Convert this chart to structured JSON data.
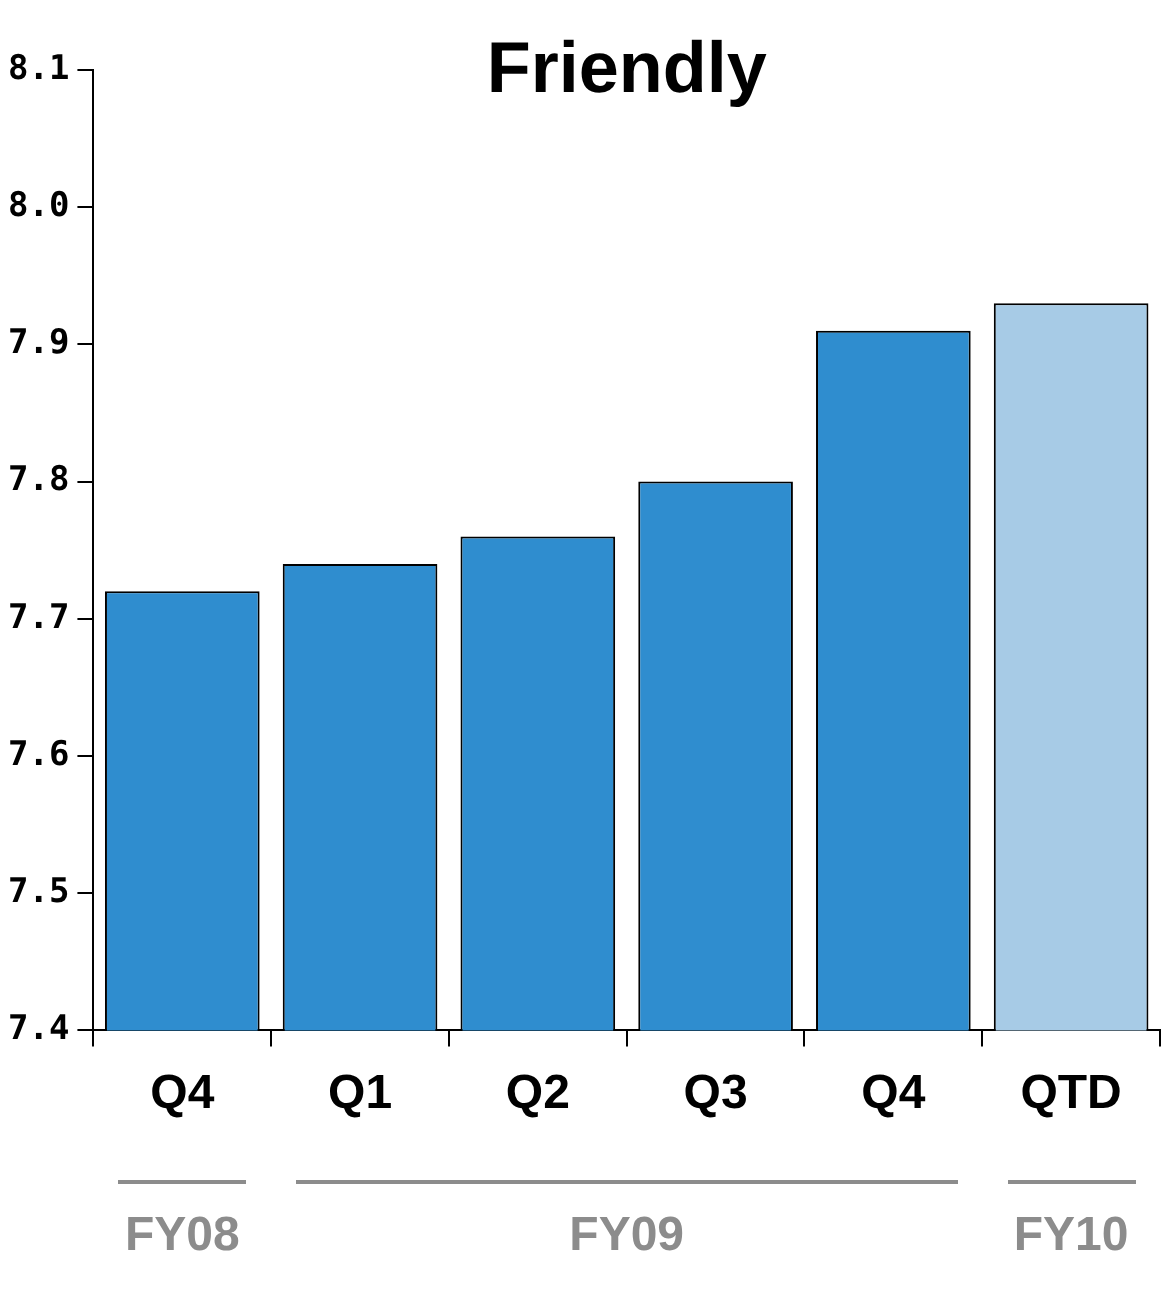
{
  "chart_data": {
    "type": "bar",
    "title": "Friendly",
    "categories": [
      "Q4",
      "Q1",
      "Q2",
      "Q3",
      "Q4",
      "QTD"
    ],
    "values": [
      7.72,
      7.74,
      7.76,
      7.8,
      7.91,
      7.93
    ],
    "colors": [
      "#2f8dcf",
      "#2f8dcf",
      "#2f8dcf",
      "#2f8dcf",
      "#2f8dcf",
      "#a7cbe6"
    ],
    "ylim": [
      7.4,
      8.1
    ],
    "yticks": [
      7.4,
      7.5,
      7.6,
      7.7,
      7.8,
      7.9,
      {
        "value": 8,
        "label": "8.0"
      },
      8.1
    ],
    "grid": false,
    "legend": false,
    "annotations": [
      "FY08",
      "FY09",
      "FY10"
    ]
  }
}
